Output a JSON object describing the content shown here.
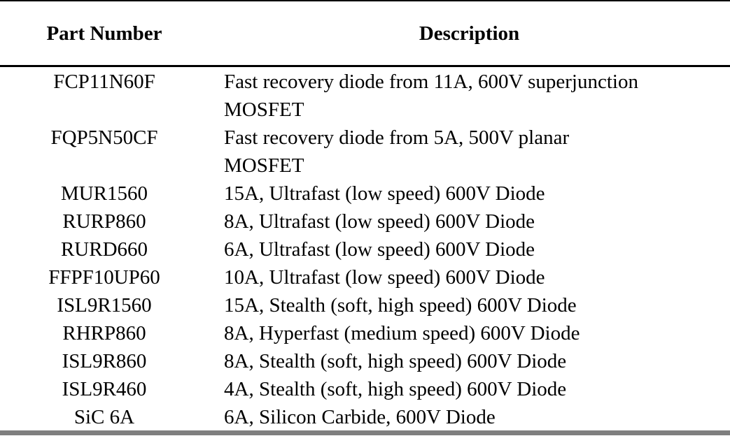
{
  "table": {
    "headers": {
      "part_number": "Part Number",
      "description": "Description"
    },
    "rows": [
      {
        "part": "FCP11N60F",
        "desc_lines": [
          "Fast recovery diode from 11A, 600V superjunction",
          "MOSFET"
        ]
      },
      {
        "part": "FQP5N50CF",
        "desc_lines": [
          "Fast recovery diode from 5A, 500V planar",
          "MOSFET"
        ]
      },
      {
        "part": "MUR1560",
        "desc_lines": [
          "15A, Ultrafast (low speed) 600V Diode"
        ]
      },
      {
        "part": "RURP860",
        "desc_lines": [
          "8A, Ultrafast (low speed) 600V Diode"
        ]
      },
      {
        "part": "RURD660",
        "desc_lines": [
          "6A, Ultrafast (low speed) 600V Diode"
        ]
      },
      {
        "part": "FFPF10UP60",
        "desc_lines": [
          "10A, Ultrafast (low speed) 600V Diode"
        ]
      },
      {
        "part": "ISL9R1560",
        "desc_lines": [
          "15A, Stealth (soft, high speed) 600V Diode"
        ]
      },
      {
        "part": "RHRP860",
        "desc_lines": [
          "8A, Hyperfast (medium speed) 600V Diode"
        ]
      },
      {
        "part": "ISL9R860",
        "desc_lines": [
          "8A, Stealth (soft, high speed) 600V Diode"
        ]
      },
      {
        "part": "ISL9R460",
        "desc_lines": [
          "4A, Stealth (soft, high speed) 600V Diode"
        ]
      },
      {
        "part": "SiC 6A",
        "desc_lines": [
          "6A, Silicon Carbide, 600V Diode"
        ]
      }
    ]
  }
}
